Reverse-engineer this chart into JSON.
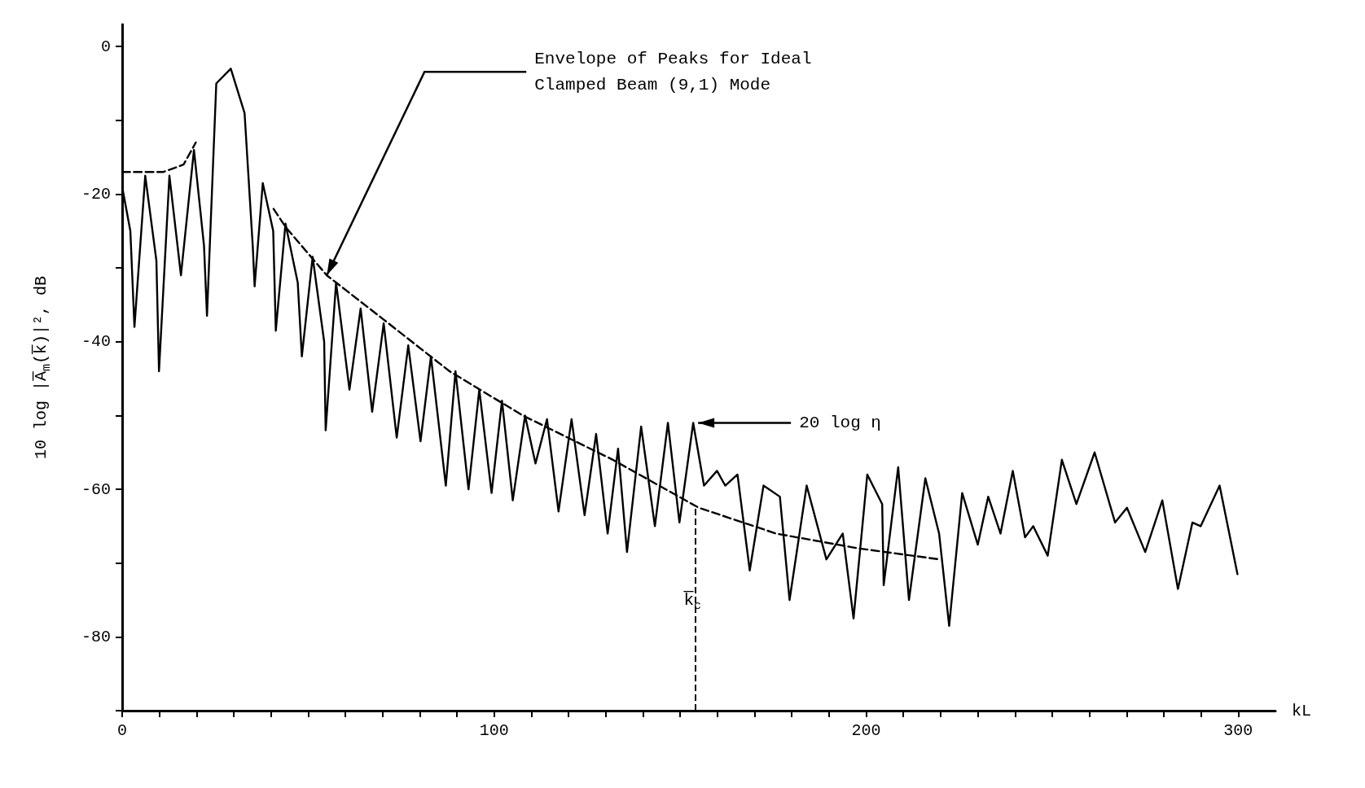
{
  "chart_data": {
    "type": "line",
    "xlabel": "kL",
    "ylabel": "10 log |A̅$_{m}$(k̅)|², dB",
    "xlim": [
      0,
      310
    ],
    "ylim": [
      -90,
      3
    ],
    "xticks": [
      0,
      {
        "value": 10,
        "label": null
      },
      {
        "value": 20,
        "label": null
      },
      {
        "value": 30,
        "label": null
      },
      {
        "value": 40,
        "label": null
      },
      {
        "value": 50,
        "label": null
      },
      {
        "value": 60,
        "label": null
      },
      {
        "value": 70,
        "label": null
      },
      {
        "value": 80,
        "label": null
      },
      {
        "value": 90,
        "label": null
      },
      100,
      {
        "value": 110,
        "label": null
      },
      {
        "value": 120,
        "label": null
      },
      {
        "value": 130,
        "label": null
      },
      {
        "value": 140,
        "label": null
      },
      {
        "value": 150,
        "label": null
      },
      {
        "value": 160,
        "label": null
      },
      {
        "value": 170,
        "label": null
      },
      {
        "value": 180,
        "label": null
      },
      {
        "value": 190,
        "label": null
      },
      200,
      {
        "value": 210,
        "label": null
      },
      {
        "value": 220,
        "label": null
      },
      {
        "value": 230,
        "label": null
      },
      {
        "value": 240,
        "label": null
      },
      {
        "value": 250,
        "label": null
      },
      {
        "value": 260,
        "label": null
      },
      {
        "value": 270,
        "label": null
      },
      {
        "value": 280,
        "label": null
      },
      {
        "value": 290,
        "label": null
      },
      300
    ],
    "yticks": [
      {
        "value": -90,
        "label": null
      },
      -80,
      {
        "value": -70,
        "label": null
      },
      -60,
      {
        "value": -50,
        "label": null
      },
      -40,
      {
        "value": -30,
        "label": null
      },
      -20,
      {
        "value": -10,
        "label": null
      },
      0
    ],
    "grid": false,
    "marker": "none",
    "series": [
      {
        "color": "#000000",
        "line_style": "solid",
        "x": [
          0,
          2.2,
          3.3,
          6.2,
          9.2,
          9.9,
          12.7,
          15.8,
          19.3,
          22,
          22.8,
          25.3,
          29.2,
          32.9,
          35.1,
          35.6,
          37.8,
          40.6,
          41.3,
          43.9,
          47.2,
          48.3,
          51.2,
          54.3,
          54.7,
          57.5,
          61.1,
          64.1,
          67.2,
          70.3,
          73.8,
          76.9,
          80.2,
          83,
          87,
          89.6,
          93.1,
          96,
          99.3,
          102.1,
          105,
          108.3,
          111.1,
          114.2,
          117.3,
          120.8,
          124.3,
          127.4,
          130.5,
          133.3,
          135.7,
          139.5,
          143.2,
          146.7,
          149.8,
          153.5,
          156.4,
          159.9,
          162.1,
          165.4,
          168.7,
          172.4,
          176.8,
          179.4,
          184,
          189.3,
          193.7,
          196.6,
          200.3,
          204.3,
          204.7,
          208.6,
          211.5,
          215.9,
          219.6,
          222.3,
          225.8,
          230,
          232.8,
          236.1,
          239.4,
          242.7,
          244.9,
          248.8,
          252.6,
          256.5,
          261.4,
          266.9,
          270.1,
          275,
          279.6,
          283.8,
          287.7,
          289.9,
          295,
          299.8
        ],
        "values": [
          -19,
          -25,
          -38,
          -17.5,
          -29,
          -44,
          -17.5,
          -31,
          -14,
          -27,
          -36.5,
          -5,
          -3,
          -9,
          -27,
          -32.5,
          -18.5,
          -25,
          -38.5,
          -24,
          -32,
          -42,
          -28.5,
          -40,
          -52,
          -32,
          -46.5,
          -35.5,
          -49.5,
          -37.5,
          -53,
          -40.5,
          -53.5,
          -42,
          -59.5,
          -44,
          -60,
          -46.5,
          -60.5,
          -48,
          -61.5,
          -50,
          -56.5,
          -50.5,
          -63,
          -50.5,
          -63.5,
          -52.5,
          -66,
          -54.5,
          -68.5,
          -51.5,
          -65,
          -51,
          -64.5,
          -51,
          -59.5,
          -57.5,
          -59.5,
          -58,
          -71,
          -59.5,
          -61,
          -75,
          -59.5,
          -69.5,
          -66,
          -77.5,
          -58,
          -62,
          -73,
          -57,
          -75,
          -58.5,
          -66,
          -78.5,
          -60.5,
          -67.5,
          -61,
          -66,
          -57.5,
          -66.5,
          -65,
          -69,
          -56,
          -62,
          -55,
          -64.5,
          -62.5,
          -68.5,
          -61.5,
          -73.5,
          -64.5,
          -65,
          -59.5,
          -71.5
        ]
      },
      {
        "color": "#000000",
        "line_style": "dashed",
        "x": [
          0,
          11,
          16.5,
          19.8,
          30,
          40.7,
          44,
          55,
          70.3,
          88,
          107.7,
          131.9,
          155,
          175.8,
          197.8,
          219.8
        ],
        "values": [
          -17,
          -17,
          -16,
          -13,
          null,
          -22,
          -24.5,
          -31,
          -37,
          -44,
          -50,
          -56,
          -62.5,
          -66,
          -68,
          -69.5
        ]
      }
    ],
    "ref_lines": [
      {
        "axis": "x",
        "value": 154,
        "label": "k̅$_{c}$",
        "line_style": "dashed",
        "color": "#000000"
      }
    ],
    "annotations": [
      {
        "text": "Envelope of Peaks for Ideal Clamped Beam (9,1) Mode",
        "x": 55,
        "y": -31
      },
      {
        "text": "20 log η",
        "x": 153.5,
        "y": -51
      }
    ]
  }
}
